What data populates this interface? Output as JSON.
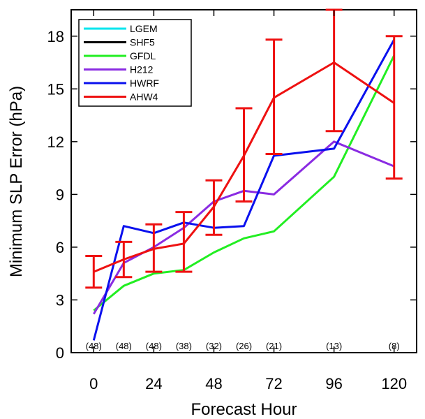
{
  "chart_data": {
    "type": "line",
    "title": "",
    "xlabel": "Forecast Hour",
    "ylabel": "Minimum SLP Error (hPa)",
    "xlim": [
      -9,
      129
    ],
    "ylim": [
      0,
      19.5
    ],
    "xticks": [
      0,
      24,
      48,
      72,
      96,
      120
    ],
    "yticks": [
      0,
      3,
      6,
      9,
      12,
      15,
      18
    ],
    "legend_position": "top-left",
    "sample_counts": [
      {
        "x": 0,
        "label": "(48)"
      },
      {
        "x": 12,
        "label": "(48)"
      },
      {
        "x": 24,
        "label": "(48)"
      },
      {
        "x": 36,
        "label": "(38)"
      },
      {
        "x": 48,
        "label": "(32)"
      },
      {
        "x": 60,
        "label": "(26)"
      },
      {
        "x": 72,
        "label": "(21)"
      },
      {
        "x": 96,
        "label": "(13)"
      },
      {
        "x": 120,
        "label": "(8)"
      }
    ],
    "series": [
      {
        "name": "LGEM",
        "color": "#00e5ee",
        "x": [],
        "values": []
      },
      {
        "name": "SHF5",
        "color": "#000000",
        "x": [],
        "values": []
      },
      {
        "name": "GFDL",
        "color": "#22ee22",
        "x": [
          0,
          12,
          24,
          36,
          48,
          60,
          72,
          96,
          120
        ],
        "values": [
          2.4,
          3.8,
          4.5,
          4.7,
          5.7,
          6.5,
          6.9,
          10.0,
          16.9
        ]
      },
      {
        "name": "H212",
        "color": "#8a2be2",
        "x": [
          0,
          12,
          24,
          36,
          48,
          60,
          72,
          96,
          120
        ],
        "values": [
          2.2,
          5.1,
          6.0,
          7.1,
          8.6,
          9.2,
          9.0,
          12.0,
          10.6
        ]
      },
      {
        "name": "HWRF",
        "color": "#0a10ee",
        "x": [
          0,
          12,
          24,
          36,
          48,
          60,
          72,
          96,
          120
        ],
        "values": [
          0.7,
          7.2,
          6.8,
          7.4,
          7.1,
          7.2,
          11.2,
          11.6,
          17.8
        ]
      },
      {
        "name": "AHW4",
        "color": "#ee1111",
        "x": [
          0,
          12,
          24,
          36,
          48,
          60,
          72,
          96,
          120
        ],
        "values": [
          4.6,
          5.3,
          5.9,
          6.2,
          8.3,
          11.2,
          14.5,
          16.5,
          14.2
        ],
        "error_low": [
          3.7,
          4.3,
          4.6,
          4.6,
          6.7,
          8.6,
          11.3,
          12.6,
          9.9
        ],
        "error_high": [
          5.5,
          6.3,
          7.3,
          8.0,
          9.8,
          13.9,
          17.8,
          19.5,
          18.0
        ]
      }
    ]
  }
}
